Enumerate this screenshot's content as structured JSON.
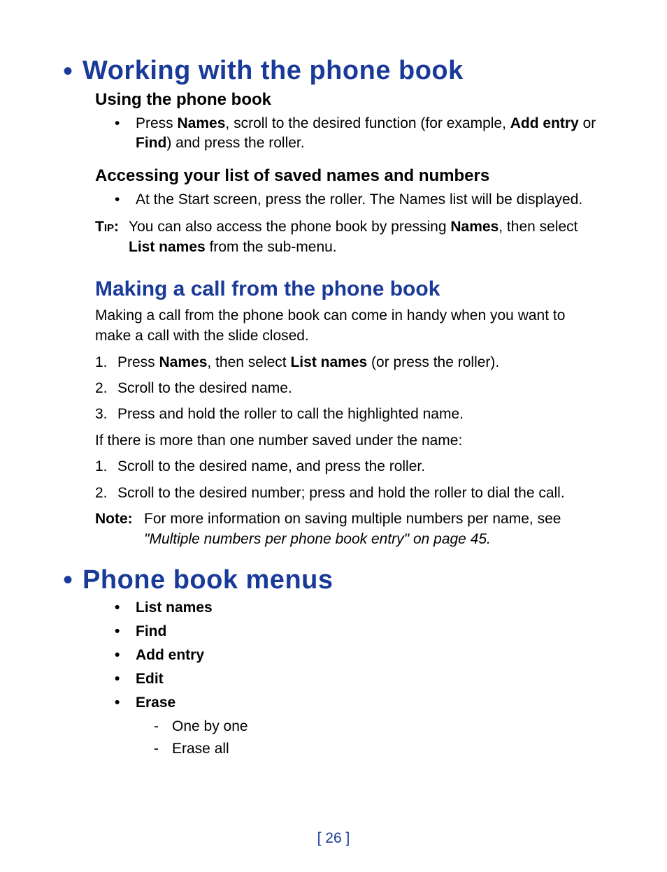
{
  "colors": {
    "heading_blue": "#1a3a9a",
    "text_black": "#000000",
    "background": "#ffffff"
  },
  "typography": {
    "h1_fontsize": 38,
    "h2_fontsize": 30,
    "h3_fontsize": 24,
    "body_fontsize": 21
  },
  "section1": {
    "title": "Working with the phone book",
    "sub1": {
      "title": "Using the phone book",
      "bullet_pre": "Press ",
      "bullet_b1": "Names",
      "bullet_mid": ", scroll to the desired function (for example, ",
      "bullet_b2": "Add entry",
      "bullet_mid2": " or ",
      "bullet_b3": "Find",
      "bullet_post": ") and press the roller."
    },
    "sub2": {
      "title": "Accessing your list of saved names and numbers",
      "bullet": "At the Start screen, press the roller. The Names list will be displayed.",
      "tip_label": "Tip:",
      "tip_pre": "You can also access the phone book by pressing ",
      "tip_b1": "Names",
      "tip_mid": ", then select ",
      "tip_b2": "List names",
      "tip_post": " from the sub-menu."
    }
  },
  "section2": {
    "title": "Making a call from the phone book",
    "intro": "Making a call from the phone book can come in handy when you want to make a call with the slide closed.",
    "steps1": {
      "s1_pre": "Press ",
      "s1_b1": "Names",
      "s1_mid": ", then select ",
      "s1_b2": "List names",
      "s1_post": " (or press the roller).",
      "s2": "Scroll to the desired name.",
      "s3": "Press and hold the roller to call the highlighted name."
    },
    "multi_intro": "If there is more than one number saved under the name:",
    "steps2": {
      "s1": "Scroll to the desired name, and press the roller.",
      "s2": "Scroll to the desired number; press and hold the roller to dial the call."
    },
    "note_label": "Note:",
    "note_text": "For more information on saving multiple numbers per name, see",
    "note_ref": "\"Multiple numbers per phone book entry\" on page 45."
  },
  "section3": {
    "title": "Phone book menus",
    "items": {
      "i1": "List names",
      "i2": "Find",
      "i3": "Add entry",
      "i4": "Edit",
      "i5": "Erase",
      "i5_sub1": "One by one",
      "i5_sub2": "Erase all"
    }
  },
  "page_number": "[ 26 ]"
}
